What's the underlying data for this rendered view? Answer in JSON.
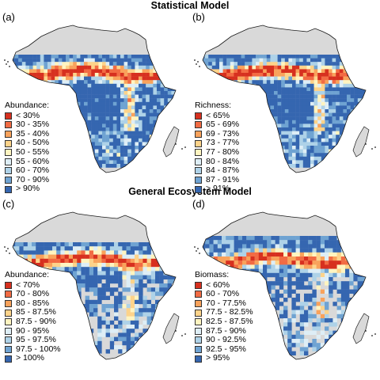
{
  "sections": {
    "top_title": "Statistical Model",
    "bottom_title": "General Ecosystem Model"
  },
  "colors": {
    "land": "#d9d9d9",
    "coast": "#1a1a1a",
    "pal_9": [
      "#d7301f",
      "#f26b43",
      "#f9a25b",
      "#fdd38a",
      "#fff4c0",
      "#deeef6",
      "#aed2e8",
      "#6fa3d2",
      "#3566b0"
    ],
    "pal_10": [
      "#d7301f",
      "#ef5d3a",
      "#f79151",
      "#fcbc70",
      "#fee49c",
      "#f4f6d2",
      "#cfe7f2",
      "#a5cde6",
      "#6b9ed0",
      "#3566b0"
    ]
  },
  "panels": [
    {
      "tag": "(a)",
      "legend_title": "Abundance:",
      "legend": [
        "< 30%",
        "30 - 35%",
        "35 - 40%",
        "40 - 50%",
        "50 - 55%",
        "55 - 60%",
        "60 - 70%",
        "70 - 90%",
        "> 90%"
      ]
    },
    {
      "tag": "(b)",
      "legend_title": "Richness:",
      "legend": [
        "< 65%",
        "65 - 69%",
        "69 - 73%",
        "73 - 77%",
        "77 - 80%",
        "80 - 84%",
        "84 - 87%",
        "87 - 91%",
        "> 91%"
      ]
    },
    {
      "tag": "(c)",
      "legend_title": "Abundance:",
      "legend": [
        "< 70%",
        "70 - 80%",
        "80 - 85%",
        "85 - 87.5%",
        "87.5 - 90%",
        "90 - 95%",
        "95 - 97.5%",
        "97.5 - 100%",
        "> 100%"
      ]
    },
    {
      "tag": "(d)",
      "legend_title": "Biomass:",
      "legend": [
        "< 60%",
        "60 - 70%",
        "70 - 77.5%",
        "77.5 - 82.5%",
        "82.5 - 87.5%",
        "87.5 - 90%",
        "90 - 92.5%",
        "92.5 - 95%",
        "> 95%"
      ]
    }
  ]
}
